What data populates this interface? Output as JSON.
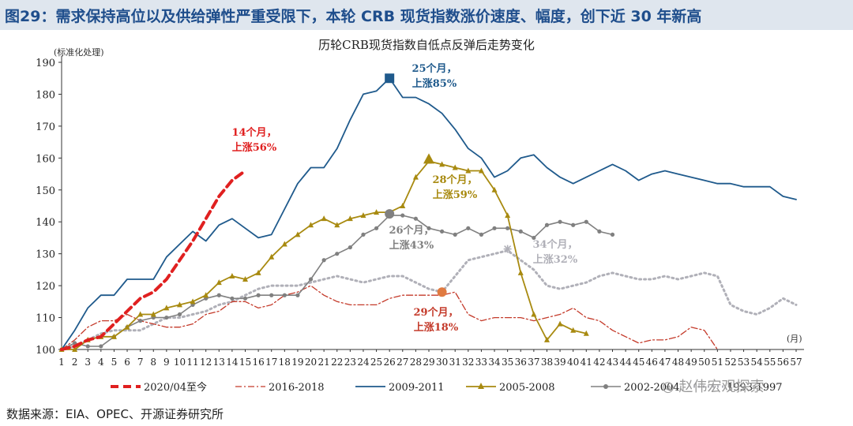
{
  "header": {
    "title": "图29：需求保持高位以及供给弹性严重受限下，本轮 CRB 现货指数涨价速度、幅度，创下近 30 年新高"
  },
  "footer": {
    "source": "数据来源：EIA、OPEC、开源证券研究所"
  },
  "watermark": {
    "text": "赵伟宏观探索"
  },
  "chart_data": {
    "type": "line",
    "title": "历轮CRB现货指数自低点反弹后走势变化",
    "ylabel": "(标准化处理)",
    "xlabel": "(月)",
    "ylim": [
      100,
      190
    ],
    "yticks": [
      100,
      110,
      120,
      130,
      140,
      150,
      160,
      170,
      180,
      190
    ],
    "xlim": [
      1,
      57
    ],
    "series": [
      {
        "name": "2020/04至今",
        "color": "#e02020",
        "style": "dash-heavy",
        "values": [
          100,
          101,
          103,
          104,
          108,
          112,
          116,
          118,
          122,
          128,
          134,
          141,
          148,
          153,
          156
        ]
      },
      {
        "name": "2016-2018",
        "color": "#c43a2a",
        "style": "dashdot",
        "values": [
          100,
          103,
          107,
          109,
          109,
          111,
          109,
          108,
          107,
          107,
          108,
          111,
          112,
          115,
          115,
          113,
          114,
          117,
          118,
          120,
          117,
          115,
          114,
          114,
          114,
          116,
          117,
          117,
          117,
          117,
          118,
          111,
          109,
          110,
          110,
          110,
          109,
          110,
          111,
          113,
          110,
          109,
          106,
          104,
          102,
          103,
          103,
          104,
          107,
          106,
          100
        ]
      },
      {
        "name": "2009-2011",
        "color": "#1f5a8c",
        "style": "solid",
        "values": [
          100,
          106,
          113,
          117,
          117,
          122,
          122,
          122,
          129,
          133,
          137,
          134,
          139,
          141,
          138,
          135,
          136,
          144,
          152,
          157,
          157,
          163,
          172,
          180,
          181,
          185,
          179,
          179,
          177,
          174,
          169,
          163,
          160,
          154,
          156,
          160,
          161,
          157,
          154,
          152,
          154,
          156,
          158,
          156,
          153,
          155,
          156,
          155,
          154,
          153,
          152,
          152,
          151,
          151,
          151,
          148,
          147
        ]
      },
      {
        "name": "2005-2008",
        "color": "#a88a10",
        "style": "solid-triangle",
        "values": [
          100,
          100,
          103,
          104,
          104,
          107,
          111,
          111,
          113,
          114,
          115,
          117,
          121,
          123,
          122,
          124,
          129,
          133,
          136,
          139,
          141,
          139,
          141,
          142,
          143,
          143,
          145,
          154,
          159,
          158,
          157,
          156,
          156,
          150,
          142,
          124,
          111,
          103,
          108,
          106,
          105
        ]
      },
      {
        "name": "2002-2004",
        "color": "#808080",
        "style": "solid-circle",
        "values": [
          100,
          102,
          101,
          101,
          104,
          107,
          109,
          110,
          110,
          111,
          114,
          116,
          117,
          116,
          116,
          117,
          117,
          117,
          117,
          122,
          128,
          130,
          132,
          136,
          138,
          142,
          142,
          141,
          138,
          137,
          136,
          138,
          136,
          138,
          138,
          137,
          135,
          139,
          140,
          139,
          140,
          137,
          136
        ]
      },
      {
        "name": "1993-1997",
        "color": "#b0b0b8",
        "style": "dotted",
        "values": [
          100,
          101,
          103,
          105,
          106,
          106,
          106,
          108,
          110,
          110,
          111,
          112,
          114,
          115,
          117,
          119,
          120,
          120,
          120,
          121,
          122,
          123,
          122,
          121,
          122,
          123,
          123,
          121,
          119,
          118,
          123,
          128,
          129,
          130,
          131,
          128,
          125,
          120,
          119,
          120,
          121,
          123,
          124,
          123,
          122,
          122,
          123,
          122,
          123,
          124,
          123,
          114,
          112,
          111,
          113,
          116,
          114
        ]
      }
    ],
    "annotations": [
      {
        "line1": "14个月，",
        "line2": "上涨56%",
        "color": "#e02020"
      },
      {
        "line1": "25个月，",
        "line2": "上涨85%",
        "color": "#1f5a8c"
      },
      {
        "line1": "28个月，",
        "line2": "上涨59%",
        "color": "#a88a10"
      },
      {
        "line1": "26个月，",
        "line2": "上涨43%",
        "color": "#808080"
      },
      {
        "line1": "34个月，",
        "line2": "上涨32%",
        "color": "#b0b0b8"
      },
      {
        "line1": "29个月，",
        "line2": "上涨18%",
        "color": "#c43a2a"
      }
    ],
    "peaks": [
      {
        "x": 26,
        "y": 185,
        "shape": "square",
        "color": "#1f5a8c"
      },
      {
        "x": 29,
        "y": 159.5,
        "shape": "triangle",
        "color": "#a88a10"
      },
      {
        "x": 26,
        "y": 142.5,
        "shape": "circle",
        "color": "#808080"
      },
      {
        "x": 30,
        "y": 118,
        "shape": "circle",
        "color": "#e07a40"
      },
      {
        "x": 35,
        "y": 131.5,
        "shape": "star",
        "color": "#b0b0b8"
      }
    ]
  }
}
